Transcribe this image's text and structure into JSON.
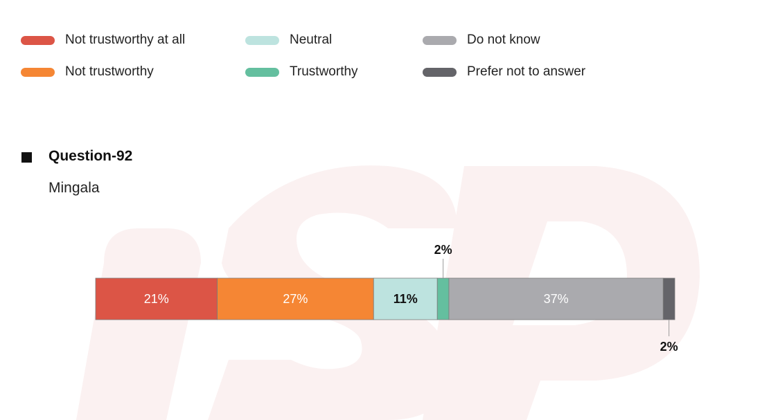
{
  "legend": [
    {
      "label": "Not trustworthy at all",
      "color": "#dc5546"
    },
    {
      "label": "Not trustworthy",
      "color": "#f58634"
    },
    {
      "label": "Neutral",
      "color": "#bde3df"
    },
    {
      "label": "Trustworthy",
      "color": "#64bf9f"
    },
    {
      "label": "Do not know",
      "color": "#aaaaae"
    },
    {
      "label": "Prefer not to answer",
      "color": "#646469"
    }
  ],
  "question": {
    "title": "Question-92",
    "subtitle": "Mingala"
  },
  "chart_data": {
    "type": "bar",
    "orientation": "horizontal-stacked-100",
    "categories": [
      "Mingala"
    ],
    "series": [
      {
        "name": "Not trustworthy at all",
        "values": [
          21
        ],
        "label": "21%"
      },
      {
        "name": "Not trustworthy",
        "values": [
          27
        ],
        "label": "27%"
      },
      {
        "name": "Neutral",
        "values": [
          11
        ],
        "label": "11%"
      },
      {
        "name": "Trustworthy",
        "values": [
          2
        ],
        "label": "2%"
      },
      {
        "name": "Do not know",
        "values": [
          37
        ],
        "label": "37%"
      },
      {
        "name": "Prefer not to answer",
        "values": [
          2
        ],
        "label": "2%"
      }
    ],
    "xlim": [
      0,
      100
    ],
    "grid": false,
    "legend_position": "top"
  }
}
